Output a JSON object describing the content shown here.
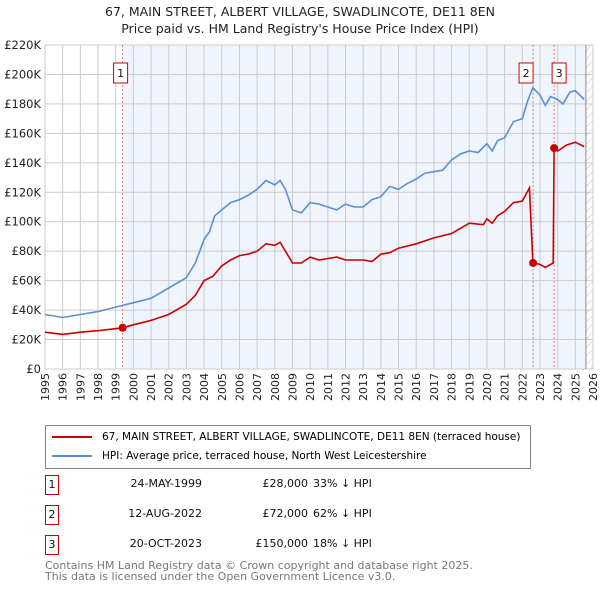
{
  "title": "67, MAIN STREET, ALBERT VILLAGE, SWADLINCOTE, DE11 8EN",
  "subtitle": "Price paid vs. HM Land Registry's House Price Index (HPI)",
  "chart_data": {
    "type": "line",
    "title": "67, MAIN STREET, ALBERT VILLAGE, SWADLINCOTE, DE11 8EN",
    "subtitle": "Price paid vs. HM Land Registry's House Price Index (HPI)",
    "xlim": [
      1995,
      2026
    ],
    "ylim": [
      0,
      220000
    ],
    "x_ticks": [
      "1995",
      "1996",
      "1997",
      "1998",
      "1999",
      "2000",
      "2001",
      "2002",
      "2003",
      "2004",
      "2005",
      "2006",
      "2007",
      "2008",
      "2009",
      "2010",
      "2011",
      "2012",
      "2013",
      "2014",
      "2015",
      "2016",
      "2017",
      "2018",
      "2019",
      "2020",
      "2021",
      "2022",
      "2023",
      "2024",
      "2025",
      "2026"
    ],
    "y_ticks": [
      {
        "v": 0,
        "l": "£0"
      },
      {
        "v": 20000,
        "l": "£20K"
      },
      {
        "v": 40000,
        "l": "£40K"
      },
      {
        "v": 60000,
        "l": "£60K"
      },
      {
        "v": 80000,
        "l": "£80K"
      },
      {
        "v": 100000,
        "l": "£100K"
      },
      {
        "v": 120000,
        "l": "£120K"
      },
      {
        "v": 140000,
        "l": "£140K"
      },
      {
        "v": 160000,
        "l": "£160K"
      },
      {
        "v": 180000,
        "l": "£180K"
      },
      {
        "v": 200000,
        "l": "£200K"
      },
      {
        "v": 220000,
        "l": "£220K"
      }
    ],
    "data_end": 2025.6,
    "series": [
      {
        "name": "67, MAIN STREET, ALBERT VILLAGE, SWADLINCOTE, DE11 8EN (terraced house)",
        "color": "#cc0000",
        "x": [
          1995,
          1996,
          1997,
          1998,
          1999.4,
          2000,
          2001,
          2002,
          2003,
          2003.5,
          2004,
          2004.5,
          2005,
          2005.5,
          2006,
          2006.5,
          2007,
          2007.5,
          2008,
          2008.3,
          2008.7,
          2009,
          2009.5,
          2010,
          2010.5,
          2011,
          2011.5,
          2012,
          2012.5,
          2013,
          2013.5,
          2014,
          2014.5,
          2015,
          2016,
          2017,
          2018,
          2019,
          2019.8,
          2020,
          2020.3,
          2020.6,
          2021,
          2021.5,
          2022,
          2022.4,
          2022.6,
          2023,
          2023.3,
          2023.75,
          2023.8,
          2024,
          2024.5,
          2025,
          2025.5
        ],
        "y": [
          25000,
          23500,
          25000,
          26000,
          28000,
          30000,
          33000,
          37000,
          44000,
          50000,
          60000,
          63000,
          70000,
          74000,
          77000,
          78000,
          80000,
          85000,
          84000,
          86000,
          78000,
          72000,
          72000,
          76000,
          74000,
          75000,
          76000,
          74000,
          74000,
          74000,
          73000,
          78000,
          79000,
          82000,
          85000,
          89000,
          92000,
          99000,
          98000,
          102000,
          99000,
          104000,
          107000,
          113000,
          114000,
          123000,
          72000,
          71000,
          69000,
          72000,
          150000,
          148000,
          152000,
          154000,
          151000
        ]
      },
      {
        "name": "HPI: Average price, terraced house, North West Leicestershire",
        "color": "#5b8fd4",
        "x": [
          1995,
          1996,
          1997,
          1998,
          1999,
          2000,
          2001,
          2002,
          2003,
          2003.5,
          2004,
          2004.3,
          2004.6,
          2005,
          2005.5,
          2006,
          2006.5,
          2007,
          2007.5,
          2008,
          2008.3,
          2008.6,
          2009,
          2009.5,
          2010,
          2010.5,
          2011,
          2011.5,
          2012,
          2012.5,
          2013,
          2013.5,
          2014,
          2014.5,
          2015,
          2015.5,
          2016,
          2016.5,
          2017,
          2017.5,
          2018,
          2018.5,
          2019,
          2019.5,
          2020,
          2020.3,
          2020.6,
          2021,
          2021.5,
          2022,
          2022.3,
          2022.6,
          2023,
          2023.3,
          2023.6,
          2024,
          2024.3,
          2024.7,
          2025,
          2025.5
        ],
        "y": [
          37000,
          35000,
          37000,
          39000,
          42000,
          45000,
          48000,
          55000,
          62000,
          72000,
          88000,
          93000,
          104000,
          108000,
          113000,
          115000,
          118000,
          122000,
          128000,
          125000,
          128000,
          122000,
          108000,
          106000,
          113000,
          112000,
          110000,
          108000,
          112000,
          110000,
          110000,
          115000,
          117000,
          124000,
          122000,
          126000,
          129000,
          133000,
          134000,
          135000,
          142000,
          146000,
          148000,
          147000,
          153000,
          148000,
          155000,
          157000,
          168000,
          170000,
          182000,
          191000,
          186000,
          179000,
          185000,
          183000,
          180000,
          188000,
          189000,
          183000
        ]
      }
    ],
    "sales": [
      {
        "label": "1",
        "x": 1999.39,
        "y": 28000
      },
      {
        "label": "2",
        "x": 2022.61,
        "y": 72000
      },
      {
        "label": "3",
        "x": 2023.8,
        "y": 150000
      }
    ]
  },
  "legend": {
    "property": "67, MAIN STREET, ALBERT VILLAGE, SWADLINCOTE, DE11 8EN (terraced house)",
    "hpi": "HPI: Average price, terraced house, North West Leicestershire"
  },
  "sales_table": [
    {
      "num": "1",
      "date": "24-MAY-1999",
      "price": "£28,000",
      "hpi": "33% ↓ HPI"
    },
    {
      "num": "2",
      "date": "12-AUG-2022",
      "price": "£72,000",
      "hpi": "62% ↓ HPI"
    },
    {
      "num": "3",
      "date": "20-OCT-2023",
      "price": "£150,000",
      "hpi": "18% ↓ HPI"
    }
  ],
  "footer": {
    "line1": "Contains HM Land Registry data © Crown copyright and database right 2025.",
    "line2": "This data is licensed under the Open Government Licence v3.0."
  }
}
